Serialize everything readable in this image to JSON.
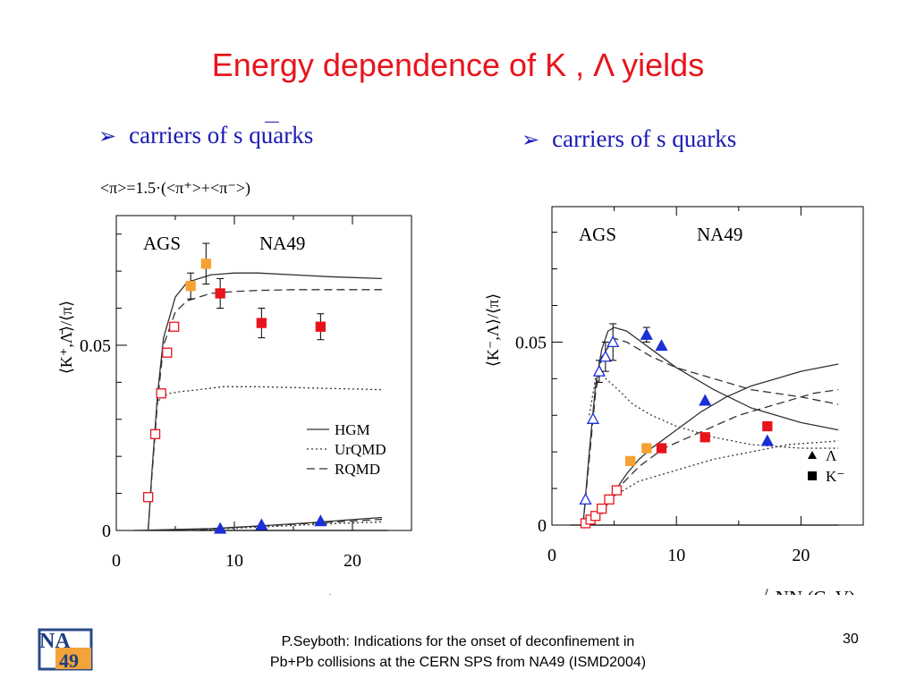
{
  "title": "Energy dependence of K , Λ yields",
  "bullets": {
    "left": "carriers of  s quarks",
    "right": "carriers of  s quarks"
  },
  "pi_formula": "<π>=1.5·(<π⁺>+<π⁻>)",
  "footer": {
    "line1": "P.Seyboth: Indications for the onset of deconfinement in",
    "line2": "Pb+Pb collisions at the CERN SPS from NA49   (ISMD2004)",
    "page": "30"
  },
  "logo": {
    "text_top": "NA",
    "text_bottom": "49"
  },
  "colors": {
    "title": "#e8141c",
    "bullet": "#1a1ab4",
    "orange": "#f7a132",
    "red": "#e8141c",
    "blue": "#1a2fd6"
  },
  "chart_data": [
    {
      "type": "scatter",
      "ylabel": "⟨K⁺,Λ̄⟩/⟨π⟩",
      "xlabel": "√sNN (GeV)",
      "annotations": [
        "AGS",
        "NA49"
      ],
      "xlim": [
        0,
        25
      ],
      "ylim": [
        0,
        0.085
      ],
      "xticks": [
        "0",
        "10",
        "20"
      ],
      "yticks": [
        "0",
        "0.05"
      ],
      "legend": [
        "HGM",
        "UrQMD",
        "RQMD"
      ],
      "series": [
        {
          "marker": "open-square-red",
          "x": [
            2.7,
            3.3,
            3.8,
            4.3,
            4.9
          ],
          "y": [
            0.009,
            0.026,
            0.037,
            0.048,
            0.055
          ]
        },
        {
          "marker": "filled-square-orange",
          "x": [
            6.3,
            7.6
          ],
          "y": [
            0.066,
            0.072
          ],
          "err": [
            0.0035,
            0.0055
          ]
        },
        {
          "marker": "filled-square-red",
          "x": [
            8.8,
            12.3,
            17.3
          ],
          "y": [
            0.064,
            0.056,
            0.055
          ],
          "err": [
            0.004,
            0.004,
            0.0035
          ]
        },
        {
          "marker": "filled-triangle-blue",
          "x": [
            8.8,
            12.3,
            17.3
          ],
          "y": [
            0.0005,
            0.0015,
            0.0025
          ]
        }
      ],
      "curves": [
        {
          "style": "solid",
          "x": [
            2.7,
            3.0,
            3.5,
            4.0,
            5.0,
            6.0,
            8.0,
            10.0,
            12.0,
            15.0,
            18.0,
            22.5
          ],
          "y": [
            0.0,
            0.015,
            0.037,
            0.052,
            0.063,
            0.067,
            0.069,
            0.0695,
            0.0695,
            0.069,
            0.0685,
            0.068
          ]
        },
        {
          "style": "dashed",
          "x": [
            2.7,
            3.0,
            3.5,
            4.0,
            5.0,
            6.0,
            8.0,
            10.0,
            12.0,
            15.0,
            18.0,
            22.5
          ],
          "y": [
            0.0,
            0.014,
            0.035,
            0.05,
            0.059,
            0.062,
            0.064,
            0.0645,
            0.0648,
            0.065,
            0.065,
            0.065
          ]
        },
        {
          "style": "dotted",
          "x": [
            3.4,
            3.8,
            4.5,
            5.5,
            7.0,
            9.0,
            12.0,
            16.0,
            22.5
          ],
          "y": [
            0.034,
            0.036,
            0.037,
            0.0375,
            0.038,
            0.0388,
            0.0388,
            0.0385,
            0.038
          ]
        },
        {
          "style": "solid",
          "x": [
            1.5,
            8.0,
            12.0,
            16.0,
            22.5
          ],
          "y": [
            0.0,
            0.0005,
            0.0012,
            0.002,
            0.0035
          ]
        },
        {
          "style": "dashed",
          "x": [
            6.0,
            10.0,
            14.0,
            18.0,
            22.5
          ],
          "y": [
            0.0,
            0.0008,
            0.0015,
            0.0022,
            0.003
          ]
        },
        {
          "style": "dotted",
          "x": [
            6.0,
            10.0,
            14.0,
            18.0,
            22.5
          ],
          "y": [
            0.0,
            0.0006,
            0.0012,
            0.0018,
            0.0023
          ]
        }
      ]
    },
    {
      "type": "scatter",
      "ylabel": "⟨K⁻,Λ⟩/⟨π⟩",
      "xlabel": "√sNN (GeV)",
      "annotations": [
        "AGS",
        "NA49"
      ],
      "xlim": [
        0,
        25
      ],
      "ylim": [
        0,
        0.087
      ],
      "xticks": [
        "0",
        "10",
        "20"
      ],
      "yticks": [
        "0",
        "0.05"
      ],
      "legend": [
        "Λ",
        "K⁻"
      ],
      "series": [
        {
          "marker": "open-triangle-blue",
          "x": [
            2.7,
            3.3,
            3.8,
            4.3,
            4.9
          ],
          "y": [
            0.007,
            0.029,
            0.042,
            0.046,
            0.05
          ],
          "err": [
            0,
            0,
            0.003,
            0.004,
            0.005
          ]
        },
        {
          "marker": "filled-triangle-blue",
          "x": [
            7.6,
            8.8,
            12.3,
            17.3
          ],
          "y": [
            0.052,
            0.049,
            0.034,
            0.023
          ],
          "err": [
            0.002,
            0,
            0,
            0
          ]
        },
        {
          "marker": "open-square-red",
          "x": [
            2.7,
            3.1,
            3.5,
            4.0,
            4.6,
            5.2
          ],
          "y": [
            0.0005,
            0.0015,
            0.0025,
            0.0045,
            0.007,
            0.0095
          ]
        },
        {
          "marker": "filled-square-orange",
          "x": [
            6.3,
            7.6
          ],
          "y": [
            0.0175,
            0.021
          ]
        },
        {
          "marker": "filled-square-red",
          "x": [
            8.8,
            12.3,
            17.3
          ],
          "y": [
            0.021,
            0.024,
            0.027
          ]
        }
      ],
      "curves": [
        {
          "style": "solid",
          "x": [
            2.5,
            3.0,
            3.5,
            4.0,
            4.5,
            5.0,
            6.0,
            8.0,
            10.0,
            13.0,
            16.0,
            20.0,
            23.0
          ],
          "y": [
            0.0,
            0.02,
            0.038,
            0.048,
            0.053,
            0.054,
            0.053,
            0.048,
            0.043,
            0.037,
            0.032,
            0.028,
            0.026
          ]
        },
        {
          "style": "dashed",
          "x": [
            2.5,
            3.0,
            3.5,
            4.0,
            5.0,
            6.0,
            8.0,
            10.0,
            13.0,
            16.0,
            20.0,
            23.0
          ],
          "y": [
            0.0,
            0.018,
            0.036,
            0.046,
            0.051,
            0.05,
            0.046,
            0.043,
            0.04,
            0.037,
            0.035,
            0.033
          ]
        },
        {
          "style": "dotted",
          "x": [
            3.0,
            3.5,
            4.0,
            5.0,
            6.5,
            8.0,
            10.0,
            13.0,
            16.0,
            20.0,
            23.0
          ],
          "y": [
            0.03,
            0.04,
            0.041,
            0.038,
            0.033,
            0.03,
            0.027,
            0.024,
            0.022,
            0.021,
            0.021
          ]
        },
        {
          "style": "solid",
          "x": [
            4.0,
            5.0,
            6.0,
            7.0,
            8.0,
            10.0,
            12.0,
            14.0,
            16.0,
            18.0,
            20.0,
            23.0
          ],
          "y": [
            0.003,
            0.009,
            0.014,
            0.018,
            0.021,
            0.026,
            0.031,
            0.035,
            0.038,
            0.04,
            0.042,
            0.044
          ]
        },
        {
          "style": "dashed",
          "x": [
            5.0,
            7.0,
            9.0,
            11.0,
            13.0,
            15.0,
            18.0,
            21.0,
            23.0
          ],
          "y": [
            0.009,
            0.016,
            0.021,
            0.024,
            0.027,
            0.03,
            0.033,
            0.036,
            0.037
          ]
        },
        {
          "style": "dotted",
          "x": [
            5.0,
            7.0,
            9.0,
            11.0,
            13.0,
            16.0,
            19.0,
            23.0
          ],
          "y": [
            0.008,
            0.012,
            0.014,
            0.016,
            0.018,
            0.02,
            0.022,
            0.023
          ]
        }
      ]
    }
  ]
}
